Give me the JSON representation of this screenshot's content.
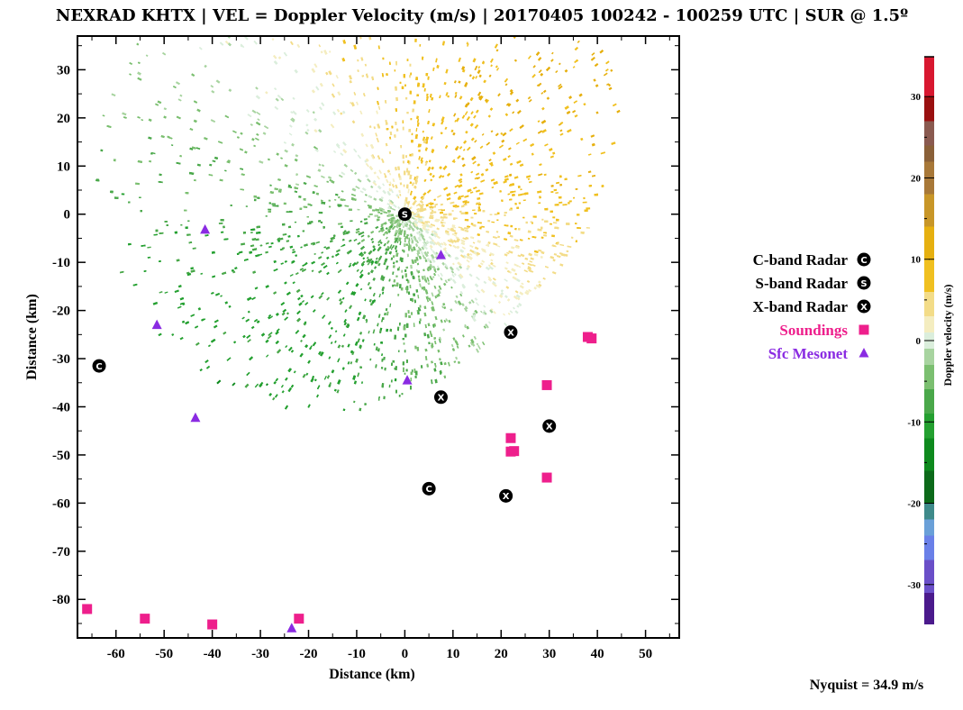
{
  "title": "NEXRAD KHTX | VEL = Doppler Velocity (m/s) | 20170405 100242 - 100259 UTC | SUR @ 1.5º",
  "nyquist_label": "Nyquist = 34.9 m/s",
  "legend": {
    "items": [
      {
        "label": "C-band Radar",
        "symbol": "C",
        "color": "#000000"
      },
      {
        "label": "S-band Radar",
        "symbol": "S",
        "color": "#000000"
      },
      {
        "label": "X-band Radar",
        "symbol": "X",
        "color": "#000000"
      },
      {
        "label": "Soundings",
        "symbol": "square",
        "color": "#ee1f8c"
      },
      {
        "label": "Sfc Mesonet",
        "symbol": "triangle",
        "color": "#8a2be2"
      }
    ]
  },
  "colorbar": {
    "label": "Doppler velocity (m/s)",
    "range": [
      -34.9,
      34.9
    ],
    "ticks": [
      30,
      20,
      10,
      0,
      -10,
      -20,
      -30
    ],
    "colors": [
      {
        "v": -34.9,
        "c": "#4b1a8c"
      },
      {
        "v": -31,
        "c": "#6a4fc8"
      },
      {
        "v": -27,
        "c": "#6a80e8"
      },
      {
        "v": -24,
        "c": "#6aa0d8"
      },
      {
        "v": -22,
        "c": "#3e8a8a"
      },
      {
        "v": -20,
        "c": "#0c6a1a"
      },
      {
        "v": -16,
        "c": "#0e8a1e"
      },
      {
        "v": -12,
        "c": "#24a030"
      },
      {
        "v": -9,
        "c": "#4aa84a"
      },
      {
        "v": -6,
        "c": "#7bbf70"
      },
      {
        "v": -3,
        "c": "#a8d4a0"
      },
      {
        "v": -1,
        "c": "#dbeedc"
      },
      {
        "v": 1,
        "c": "#f4edc0"
      },
      {
        "v": 3,
        "c": "#f3dc88"
      },
      {
        "v": 6,
        "c": "#f0c020"
      },
      {
        "v": 10,
        "c": "#e6b010"
      },
      {
        "v": 14,
        "c": "#c89628"
      },
      {
        "v": 18,
        "c": "#a87838"
      },
      {
        "v": 22,
        "c": "#8a6038"
      },
      {
        "v": 24,
        "c": "#8a5a50"
      },
      {
        "v": 27,
        "c": "#9a1010"
      },
      {
        "v": 30,
        "c": "#d81830"
      },
      {
        "v": 34.9,
        "c": "#f06080"
      }
    ]
  },
  "chart_data": {
    "type": "scatter",
    "xlabel": "Distance (km)",
    "ylabel": "Distance (km)",
    "xlim": [
      -68,
      57
    ],
    "ylim": [
      -88,
      37
    ],
    "xticks": [
      -60,
      -50,
      -40,
      -30,
      -20,
      -10,
      0,
      10,
      20,
      30,
      40,
      50
    ],
    "yticks": [
      30,
      20,
      10,
      0,
      -10,
      -20,
      -30,
      -40,
      -50,
      -60,
      -70,
      -80
    ],
    "grid": false,
    "legend_placement": "right",
    "series": [
      {
        "name": "C-band Radar",
        "points": [
          [
            -63.5,
            -31.5
          ],
          [
            5,
            -57
          ]
        ]
      },
      {
        "name": "S-band Radar",
        "points": [
          [
            0,
            0
          ]
        ]
      },
      {
        "name": "X-band Radar",
        "points": [
          [
            22,
            -24.5
          ],
          [
            7.5,
            -38
          ],
          [
            30,
            -44
          ],
          [
            21,
            -58.5
          ]
        ]
      },
      {
        "name": "Soundings",
        "points": [
          [
            38,
            -25.5
          ],
          [
            38.8,
            -25.8
          ],
          [
            29.5,
            -35.5
          ],
          [
            22,
            -46.5
          ],
          [
            22,
            -49.3
          ],
          [
            22.7,
            -49.2
          ],
          [
            29.5,
            -54.7
          ],
          [
            -66,
            -82
          ],
          [
            -54,
            -84
          ],
          [
            -40,
            -85.2
          ],
          [
            -22,
            -84
          ]
        ]
      },
      {
        "name": "Sfc Mesonet",
        "points": [
          [
            -41.5,
            -3.2
          ],
          [
            7.5,
            -8.5
          ],
          [
            -51.5,
            -23
          ],
          [
            0.5,
            -34.5
          ],
          [
            -43.5,
            -42.3
          ],
          [
            -23.5,
            -86
          ]
        ]
      }
    ]
  }
}
